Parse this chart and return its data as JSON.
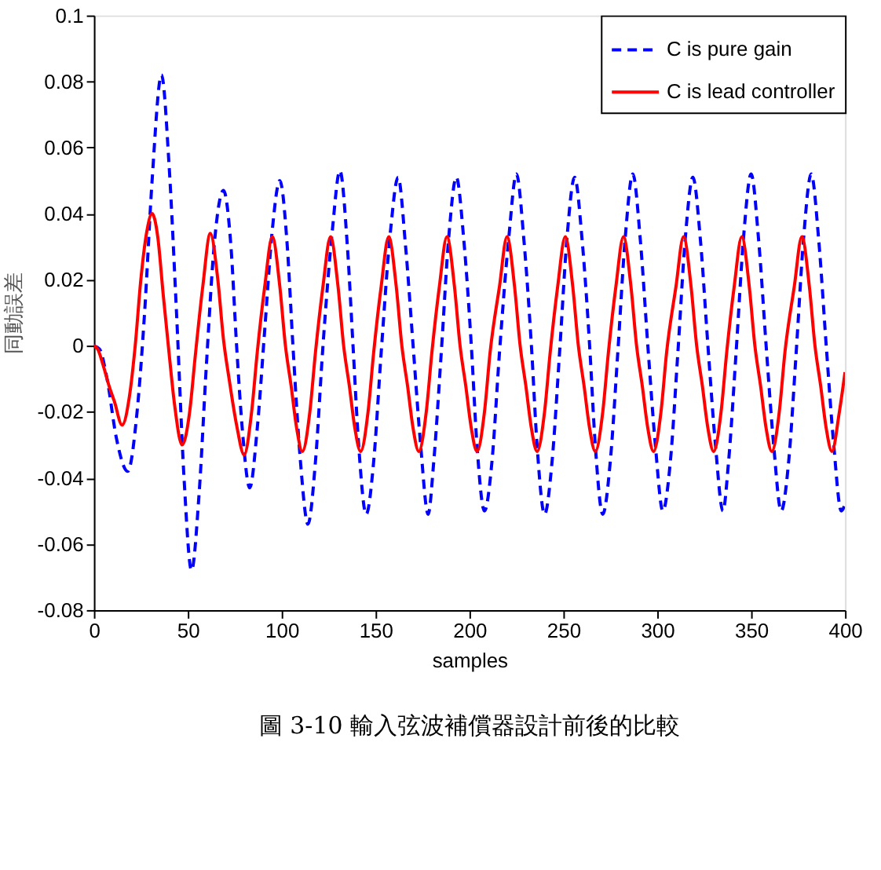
{
  "chart_data": {
    "type": "line",
    "xlabel": "samples",
    "ylabel": "同動誤差",
    "annotations": [
      "圖 3-10  輸入弦波補償器設計前後的比較"
    ],
    "xlim": [
      0,
      400
    ],
    "xticks": [
      0,
      50,
      100,
      150,
      200,
      250,
      300,
      350,
      400
    ],
    "ylim": [
      -0.08,
      0.1
    ],
    "yticks": [
      -0.08,
      -0.06,
      -0.04,
      -0.02,
      0,
      0.02,
      0.04,
      0.06,
      0.08,
      0.1
    ],
    "grid": false,
    "legend": "top right",
    "series": [
      {
        "name": "C is pure gain",
        "color": "#0000ff",
        "line_style": "dashed",
        "x": [
          0,
          3,
          7,
          12,
          18,
          23,
          27,
          31,
          36,
          40,
          44,
          48,
          52,
          56,
          60,
          64,
          69,
          73,
          76,
          79,
          83,
          87,
          91,
          95,
          99,
          103,
          106,
          110,
          114,
          118,
          122,
          127,
          131,
          135,
          138,
          141,
          145,
          149,
          153,
          158,
          162,
          166,
          170,
          174,
          178,
          181,
          185,
          189,
          193,
          197,
          201,
          204,
          208,
          212,
          216,
          221,
          225,
          229,
          233,
          236,
          240,
          244,
          248,
          252,
          256,
          260,
          264,
          267,
          271,
          275,
          279,
          283,
          287,
          291,
          295,
          299,
          303,
          307,
          311,
          315,
          319,
          323,
          327,
          331,
          335,
          338,
          342,
          346,
          350,
          354,
          358,
          362,
          366,
          370,
          374,
          378,
          382,
          386,
          390,
          394,
          398,
          400
        ],
        "values": [
          0,
          -0.001,
          -0.01,
          -0.028,
          -0.038,
          -0.02,
          0.01,
          0.05,
          0.082,
          0.055,
          0.01,
          -0.04,
          -0.068,
          -0.045,
          -0.005,
          0.03,
          0.047,
          0.03,
          0,
          -0.025,
          -0.043,
          -0.025,
          0.005,
          0.035,
          0.05,
          0.03,
          0,
          -0.035,
          -0.054,
          -0.035,
          0,
          0.035,
          0.053,
          0.03,
          0,
          -0.03,
          -0.051,
          -0.035,
          -0.002,
          0.035,
          0.051,
          0.03,
          0,
          -0.03,
          -0.051,
          -0.035,
          -0.002,
          0.033,
          0.051,
          0.032,
          0,
          -0.03,
          -0.05,
          -0.035,
          -0.002,
          0.033,
          0.052,
          0.032,
          0,
          -0.03,
          -0.051,
          -0.035,
          -0.002,
          0.033,
          0.051,
          0.032,
          0,
          -0.03,
          -0.051,
          -0.035,
          -0.002,
          0.033,
          0.052,
          0.032,
          0,
          -0.03,
          -0.05,
          -0.035,
          -0.002,
          0.033,
          0.051,
          0.032,
          0,
          -0.03,
          -0.05,
          -0.035,
          -0.002,
          0.033,
          0.052,
          0.032,
          0,
          -0.03,
          -0.05,
          -0.035,
          -0.002,
          0.033,
          0.052,
          0.032,
          0,
          -0.03,
          -0.05,
          -0.048
        ]
      },
      {
        "name": "C is lead controller",
        "color": "#ff0000",
        "line_style": "solid",
        "x": [
          0,
          2,
          5,
          8,
          11,
          15,
          19,
          22,
          25,
          28,
          31,
          34,
          37,
          40,
          43,
          47,
          51,
          54,
          58,
          62,
          66,
          69,
          72,
          76,
          80,
          84,
          87,
          91,
          95,
          99,
          102,
          105,
          108,
          111,
          115,
          118,
          122,
          126,
          130,
          133,
          136,
          139,
          142,
          146,
          149,
          153,
          157,
          161,
          164,
          167,
          170,
          173,
          177,
          180,
          184,
          188,
          192,
          195,
          198,
          201,
          204,
          208,
          211,
          216,
          220,
          224,
          227,
          230,
          233,
          236,
          240,
          243,
          247,
          251,
          255,
          258,
          261,
          264,
          267,
          271,
          274,
          278,
          282,
          286,
          289,
          292,
          295,
          298,
          302,
          305,
          310,
          314,
          318,
          321,
          324,
          327,
          330,
          334,
          337,
          341,
          345,
          349,
          352,
          355,
          358,
          361,
          365,
          368,
          373,
          377,
          381,
          384,
          387,
          390,
          393,
          397,
          400
        ],
        "values": [
          0,
          -0.001,
          -0.006,
          -0.012,
          -0.017,
          -0.024,
          -0.015,
          0,
          0.02,
          0.034,
          0.04,
          0.033,
          0.015,
          -0.002,
          -0.018,
          -0.03,
          -0.02,
          -0.003,
          0.018,
          0.034,
          0.02,
          0.002,
          -0.01,
          -0.024,
          -0.033,
          -0.02,
          -0.002,
          0.018,
          0.033,
          0.018,
          0,
          -0.012,
          -0.025,
          -0.032,
          -0.02,
          -0.002,
          0.018,
          0.033,
          0.018,
          0,
          -0.012,
          -0.025,
          -0.032,
          -0.02,
          -0.002,
          0.018,
          0.033,
          0.018,
          0,
          -0.012,
          -0.025,
          -0.032,
          -0.02,
          -0.002,
          0.018,
          0.033,
          0.018,
          0,
          -0.012,
          -0.025,
          -0.032,
          -0.02,
          -0.002,
          0.018,
          0.033,
          0.018,
          0,
          -0.012,
          -0.025,
          -0.032,
          -0.02,
          -0.002,
          0.018,
          0.033,
          0.018,
          0,
          -0.012,
          -0.025,
          -0.032,
          -0.02,
          -0.002,
          0.018,
          0.033,
          0.018,
          0,
          -0.012,
          -0.025,
          -0.032,
          -0.02,
          -0.002,
          0.018,
          0.033,
          0.018,
          0,
          -0.012,
          -0.025,
          -0.032,
          -0.02,
          -0.002,
          0.018,
          0.033,
          0.018,
          0,
          -0.012,
          -0.025,
          -0.032,
          -0.02,
          -0.002,
          0.018,
          0.033,
          0.018,
          0,
          -0.012,
          -0.025,
          -0.032,
          -0.02,
          -0.008
        ]
      }
    ]
  }
}
